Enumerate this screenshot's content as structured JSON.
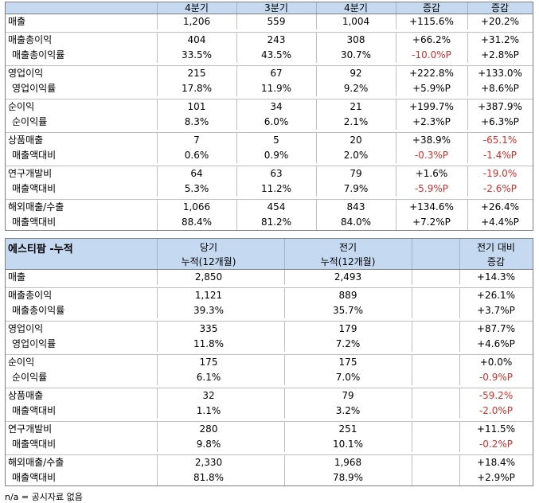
{
  "quarterly": {
    "headers": [
      "4분기",
      "3분기",
      "4분기",
      "증감",
      "증감"
    ],
    "groups": [
      {
        "rows": [
          {
            "label": "매출",
            "sub": false,
            "values": [
              "1,206",
              "559",
              "1,004",
              "+115.6%",
              "+20.2%"
            ],
            "neg": [
              false,
              false,
              false,
              false,
              false
            ]
          }
        ]
      },
      {
        "rows": [
          {
            "label": "매출총이익",
            "sub": false,
            "values": [
              "404",
              "243",
              "308",
              "+66.2%",
              "+31.2%"
            ],
            "neg": [
              false,
              false,
              false,
              false,
              false
            ]
          },
          {
            "label": "매출총이익률",
            "sub": true,
            "values": [
              "33.5%",
              "43.5%",
              "30.7%",
              "-10.0%P",
              "+2.8%P"
            ],
            "neg": [
              false,
              false,
              false,
              true,
              false
            ]
          }
        ]
      },
      {
        "rows": [
          {
            "label": "영업이익",
            "sub": false,
            "values": [
              "215",
              "67",
              "92",
              "+222.8%",
              "+133.0%"
            ],
            "neg": [
              false,
              false,
              false,
              false,
              false
            ]
          },
          {
            "label": "영업이익률",
            "sub": true,
            "values": [
              "17.8%",
              "11.9%",
              "9.2%",
              "+5.9%P",
              "+8.6%P"
            ],
            "neg": [
              false,
              false,
              false,
              false,
              false
            ]
          }
        ]
      },
      {
        "rows": [
          {
            "label": "순이익",
            "sub": false,
            "values": [
              "101",
              "34",
              "21",
              "+199.7%",
              "+387.9%"
            ],
            "neg": [
              false,
              false,
              false,
              false,
              false
            ]
          },
          {
            "label": "순이익률",
            "sub": true,
            "values": [
              "8.3%",
              "6.0%",
              "2.1%",
              "+2.3%P",
              "+6.3%P"
            ],
            "neg": [
              false,
              false,
              false,
              false,
              false
            ]
          }
        ]
      },
      {
        "rows": [
          {
            "label": "상품매출",
            "sub": false,
            "values": [
              "7",
              "5",
              "20",
              "+38.9%",
              "-65.1%"
            ],
            "neg": [
              false,
              false,
              false,
              false,
              true
            ]
          },
          {
            "label": "매출액대비",
            "sub": true,
            "values": [
              "0.6%",
              "0.9%",
              "2.0%",
              "-0.3%P",
              "-1.4%P"
            ],
            "neg": [
              false,
              false,
              false,
              true,
              true
            ]
          }
        ]
      },
      {
        "rows": [
          {
            "label": "연구개발비",
            "sub": false,
            "values": [
              "64",
              "63",
              "79",
              "+1.6%",
              "-19.0%"
            ],
            "neg": [
              false,
              false,
              false,
              false,
              true
            ]
          },
          {
            "label": "매출액대비",
            "sub": true,
            "values": [
              "5.3%",
              "11.2%",
              "7.9%",
              "-5.9%P",
              "-2.6%P"
            ],
            "neg": [
              false,
              false,
              false,
              true,
              true
            ]
          }
        ]
      },
      {
        "rows": [
          {
            "label": "해외매출/수출",
            "sub": false,
            "values": [
              "1,066",
              "454",
              "843",
              "+134.6%",
              "+26.4%"
            ],
            "neg": [
              false,
              false,
              false,
              false,
              false
            ]
          },
          {
            "label": "매출액대비",
            "sub": true,
            "values": [
              "88.4%",
              "81.2%",
              "84.0%",
              "+7.2%P",
              "+4.4%P"
            ],
            "neg": [
              false,
              false,
              false,
              false,
              false
            ]
          }
        ]
      }
    ]
  },
  "cumulative": {
    "title": "에스티팜 -누적",
    "headers": [
      {
        "line1": "당기",
        "line2": "누적(12개월)"
      },
      {
        "line1": "전기",
        "line2": "누적(12개월)"
      },
      {
        "line1": "전기 대비",
        "line2": "증감"
      }
    ],
    "groups": [
      {
        "rows": [
          {
            "label": "매출",
            "sub": false,
            "values": [
              "2,850",
              "2,493",
              "+14.3%"
            ],
            "neg": [
              false,
              false,
              false
            ]
          }
        ]
      },
      {
        "rows": [
          {
            "label": "매출총이익",
            "sub": false,
            "values": [
              "1,121",
              "889",
              "+26.1%"
            ],
            "neg": [
              false,
              false,
              false
            ]
          },
          {
            "label": "매출총이익률",
            "sub": true,
            "values": [
              "39.3%",
              "35.7%",
              "+3.7%P"
            ],
            "neg": [
              false,
              false,
              false
            ]
          }
        ]
      },
      {
        "rows": [
          {
            "label": "영업이익",
            "sub": false,
            "values": [
              "335",
              "179",
              "+87.7%"
            ],
            "neg": [
              false,
              false,
              false
            ]
          },
          {
            "label": "영업이익률",
            "sub": true,
            "values": [
              "11.8%",
              "7.2%",
              "+4.6%P"
            ],
            "neg": [
              false,
              false,
              false
            ]
          }
        ]
      },
      {
        "rows": [
          {
            "label": "순이익",
            "sub": false,
            "values": [
              "175",
              "175",
              "+0.0%"
            ],
            "neg": [
              false,
              false,
              false
            ]
          },
          {
            "label": "순이익률",
            "sub": true,
            "values": [
              "6.1%",
              "7.0%",
              "-0.9%P"
            ],
            "neg": [
              false,
              false,
              true
            ]
          }
        ]
      },
      {
        "rows": [
          {
            "label": "상품매출",
            "sub": false,
            "values": [
              "32",
              "79",
              "-59.2%"
            ],
            "neg": [
              false,
              false,
              true
            ]
          },
          {
            "label": "매출액대비",
            "sub": true,
            "values": [
              "1.1%",
              "3.2%",
              "-2.0%P"
            ],
            "neg": [
              false,
              false,
              true
            ]
          }
        ]
      },
      {
        "rows": [
          {
            "label": "연구개발비",
            "sub": false,
            "values": [
              "280",
              "251",
              "+11.5%"
            ],
            "neg": [
              false,
              false,
              false
            ]
          },
          {
            "label": "매출액대비",
            "sub": true,
            "values": [
              "9.8%",
              "10.1%",
              "-0.2%P"
            ],
            "neg": [
              false,
              false,
              true
            ]
          }
        ]
      },
      {
        "rows": [
          {
            "label": "해외매출/수출",
            "sub": false,
            "values": [
              "2,330",
              "1,968",
              "+18.4%"
            ],
            "neg": [
              false,
              false,
              false
            ]
          },
          {
            "label": "매출액대비",
            "sub": true,
            "values": [
              "81.8%",
              "78.9%",
              "+2.9%P"
            ],
            "neg": [
              false,
              false,
              false
            ]
          }
        ]
      }
    ]
  },
  "note": "n/a = 공시자료 없음",
  "colors": {
    "header_bg": "#c5d9f1",
    "negative": "#d0312d",
    "border": "#7f7f7f"
  }
}
